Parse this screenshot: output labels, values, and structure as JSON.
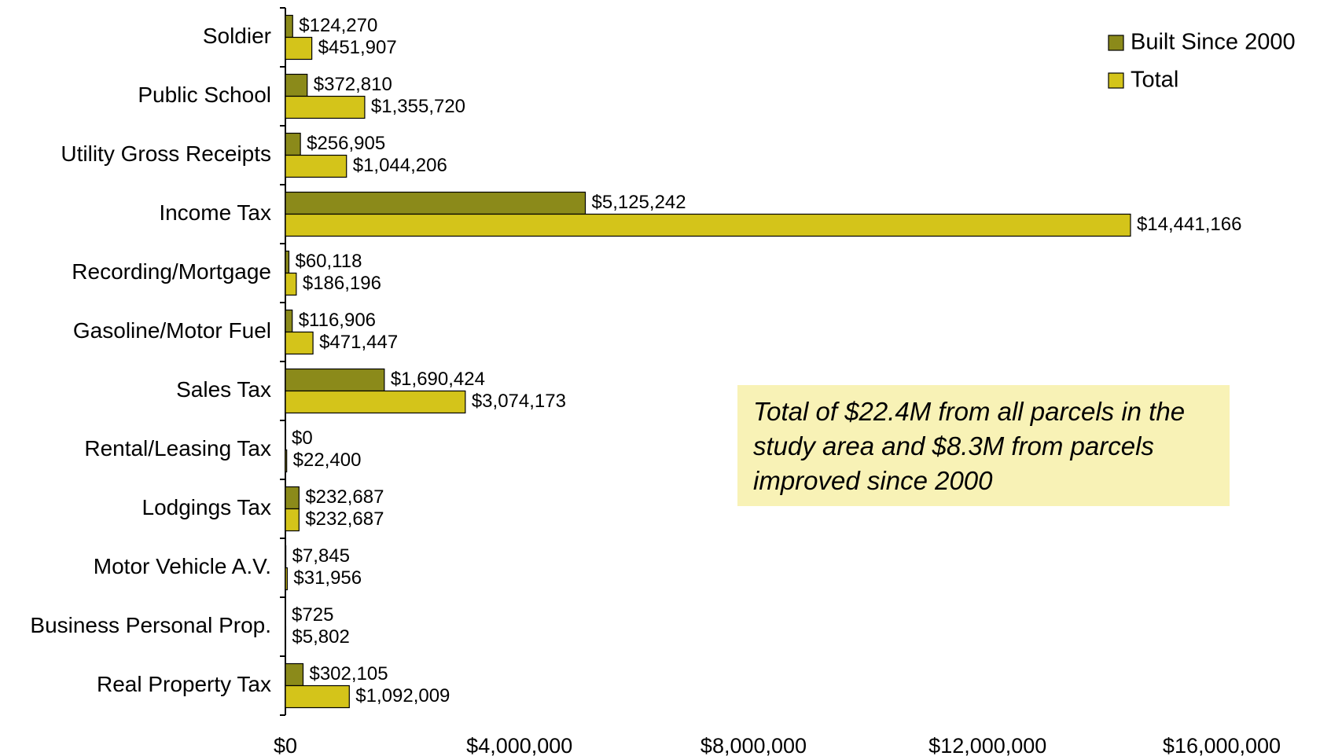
{
  "chart_data": {
    "type": "bar",
    "orientation": "horizontal",
    "categories": [
      "Soldier",
      "Public School",
      "Utility Gross Receipts",
      "Income Tax",
      "Recording/Mortgage",
      "Gasoline/Motor Fuel",
      "Sales Tax",
      "Rental/Leasing Tax",
      "Lodgings Tax",
      "Motor Vehicle A.V.",
      "Business Personal Prop.",
      "Real Property Tax"
    ],
    "series": [
      {
        "name": "Built Since 2000",
        "color": "#8b8a1a",
        "values": [
          124270,
          372810,
          256905,
          5125242,
          60118,
          116906,
          1690424,
          0,
          232687,
          7845,
          725,
          302105
        ],
        "labels": [
          "$124,270",
          "$372,810",
          "$256,905",
          "$5,125,242",
          "$60,118",
          "$116,906",
          "$1,690,424",
          "$0",
          "$232,687",
          "$7,845",
          "$725",
          "$302,105"
        ]
      },
      {
        "name": "Total",
        "color": "#d4c41a",
        "values": [
          451907,
          1355720,
          1044206,
          14441166,
          186196,
          471447,
          3074173,
          22400,
          232687,
          31956,
          5802,
          1092009
        ],
        "labels": [
          "$451,907",
          "$1,355,720",
          "$1,044,206",
          "$14,441,166",
          "$186,196",
          "$471,447",
          "$3,074,173",
          "$22,400",
          "$232,687",
          "$31,956",
          "$5,802",
          "$1,092,009"
        ]
      }
    ],
    "xlim": [
      0,
      16000000
    ],
    "xticks": [
      0,
      4000000,
      8000000,
      12000000,
      16000000
    ],
    "xtick_labels": [
      "$0",
      "$4,000,000",
      "$8,000,000",
      "$12,000,000",
      "$16,000,000"
    ],
    "legend_position": "top-right",
    "grid": false,
    "annotation": "Total of $22.4M from all parcels in the study area and $8.3M from parcels improved since 2000"
  }
}
